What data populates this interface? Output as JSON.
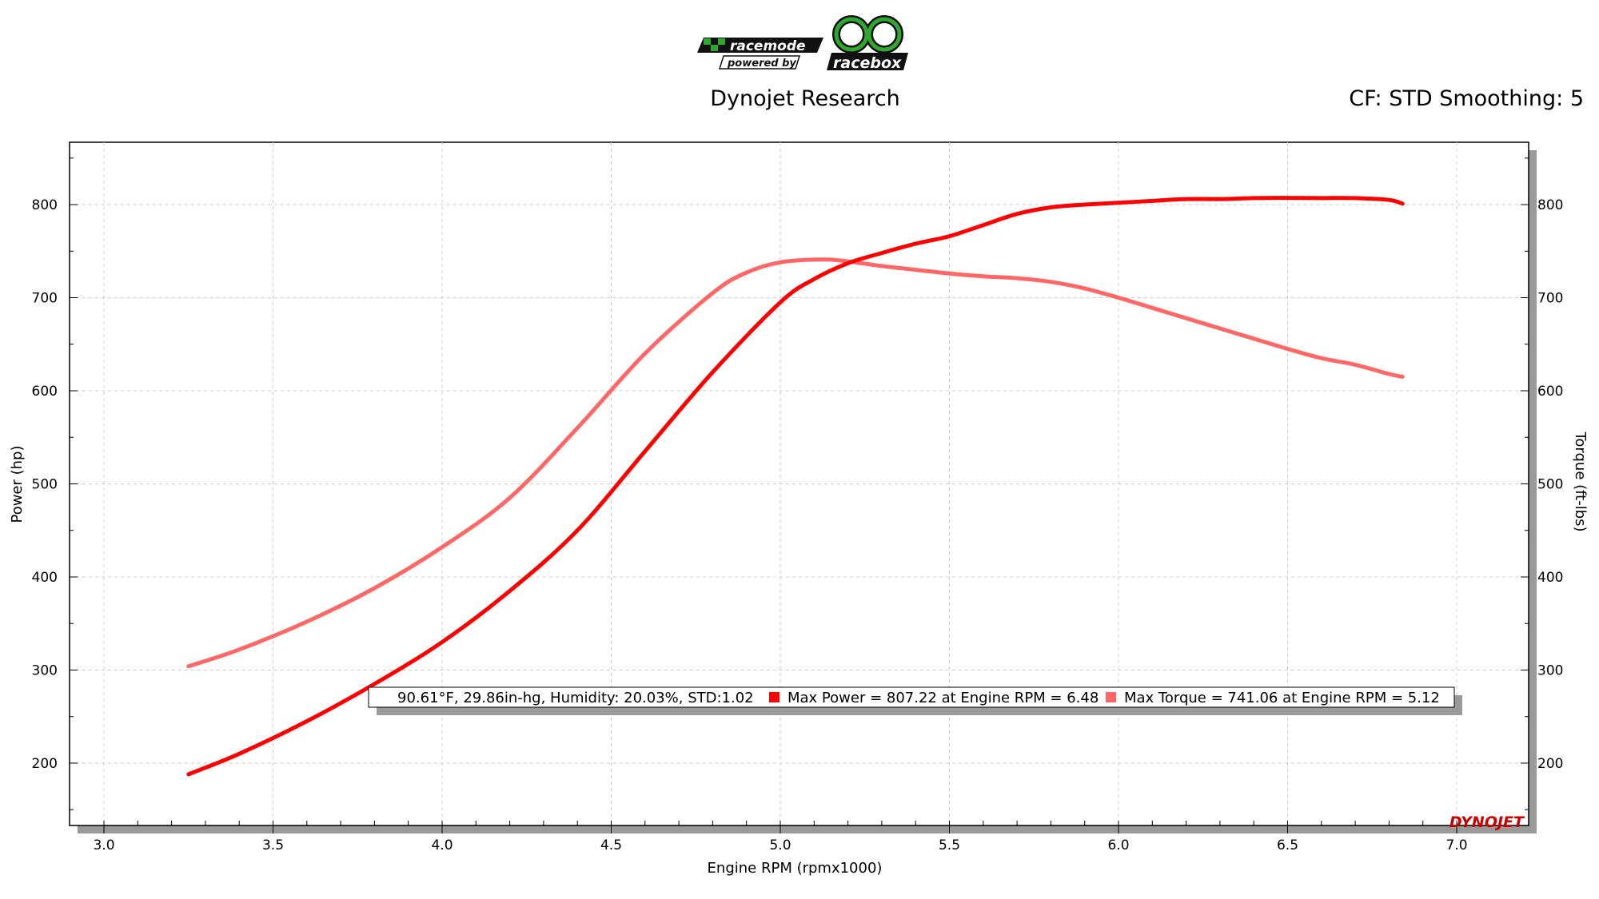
{
  "header": {
    "logo_primary": "racemode",
    "logo_secondary": "powered by",
    "logo_brand": "racebox",
    "title": "Dynojet Research",
    "settings": "CF: STD Smoothing: 5"
  },
  "watermark": "DYNOJET",
  "colors": {
    "power": "#ff0000",
    "torque": "#ff6666",
    "logo_green": "#2ea82e",
    "logo_dark": "#111111"
  },
  "legend": {
    "conditions": "90.61°F, 29.86in-hg, Humidity: 20.03%, STD:1.02",
    "power": "Max Power = 807.22 at Engine RPM = 6.48",
    "torque": "Max Torque = 741.06 at Engine RPM = 5.12"
  },
  "chart_data": {
    "type": "line",
    "xlabel": "Engine RPM (rpmx1000)",
    "ylabel_left": "Power (hp)",
    "ylabel_right": "Torque (ft-lbs)",
    "xlim": [
      3.0,
      7.0
    ],
    "ylim": [
      133,
      867
    ],
    "xticks": [
      "3.0",
      "3.5",
      "4.0",
      "4.5",
      "5.0",
      "5.5",
      "6.0",
      "6.5",
      "7.0"
    ],
    "yticks": [
      "200",
      "300",
      "400",
      "500",
      "600",
      "700",
      "800"
    ],
    "grid": true,
    "series": [
      {
        "name": "Max Power",
        "axis": "left",
        "x": [
          3.25,
          3.4,
          3.6,
          3.8,
          4.0,
          4.2,
          4.4,
          4.6,
          4.8,
          5.0,
          5.1,
          5.2,
          5.3,
          5.4,
          5.5,
          5.6,
          5.7,
          5.8,
          5.9,
          6.0,
          6.1,
          6.2,
          6.3,
          6.4,
          6.48,
          6.6,
          6.7,
          6.8,
          6.84
        ],
        "values": [
          188,
          210,
          245,
          285,
          330,
          385,
          450,
          535,
          620,
          695,
          720,
          737,
          748,
          758,
          766,
          778,
          790,
          797,
          800,
          802,
          804,
          806,
          806,
          807,
          807.22,
          807,
          807,
          805,
          801
        ]
      },
      {
        "name": "Max Torque",
        "axis": "right",
        "x": [
          3.25,
          3.4,
          3.6,
          3.8,
          4.0,
          4.2,
          4.4,
          4.6,
          4.8,
          4.9,
          5.0,
          5.12,
          5.2,
          5.3,
          5.4,
          5.5,
          5.6,
          5.7,
          5.8,
          5.9,
          6.0,
          6.1,
          6.2,
          6.3,
          6.4,
          6.5,
          6.6,
          6.7,
          6.8,
          6.84
        ],
        "values": [
          304,
          322,
          352,
          388,
          432,
          485,
          560,
          640,
          705,
          727,
          738,
          741.06,
          739,
          734,
          730,
          726,
          723,
          721,
          717,
          710,
          700,
          689,
          678,
          667,
          656,
          645,
          635,
          628,
          618,
          615
        ]
      }
    ]
  }
}
